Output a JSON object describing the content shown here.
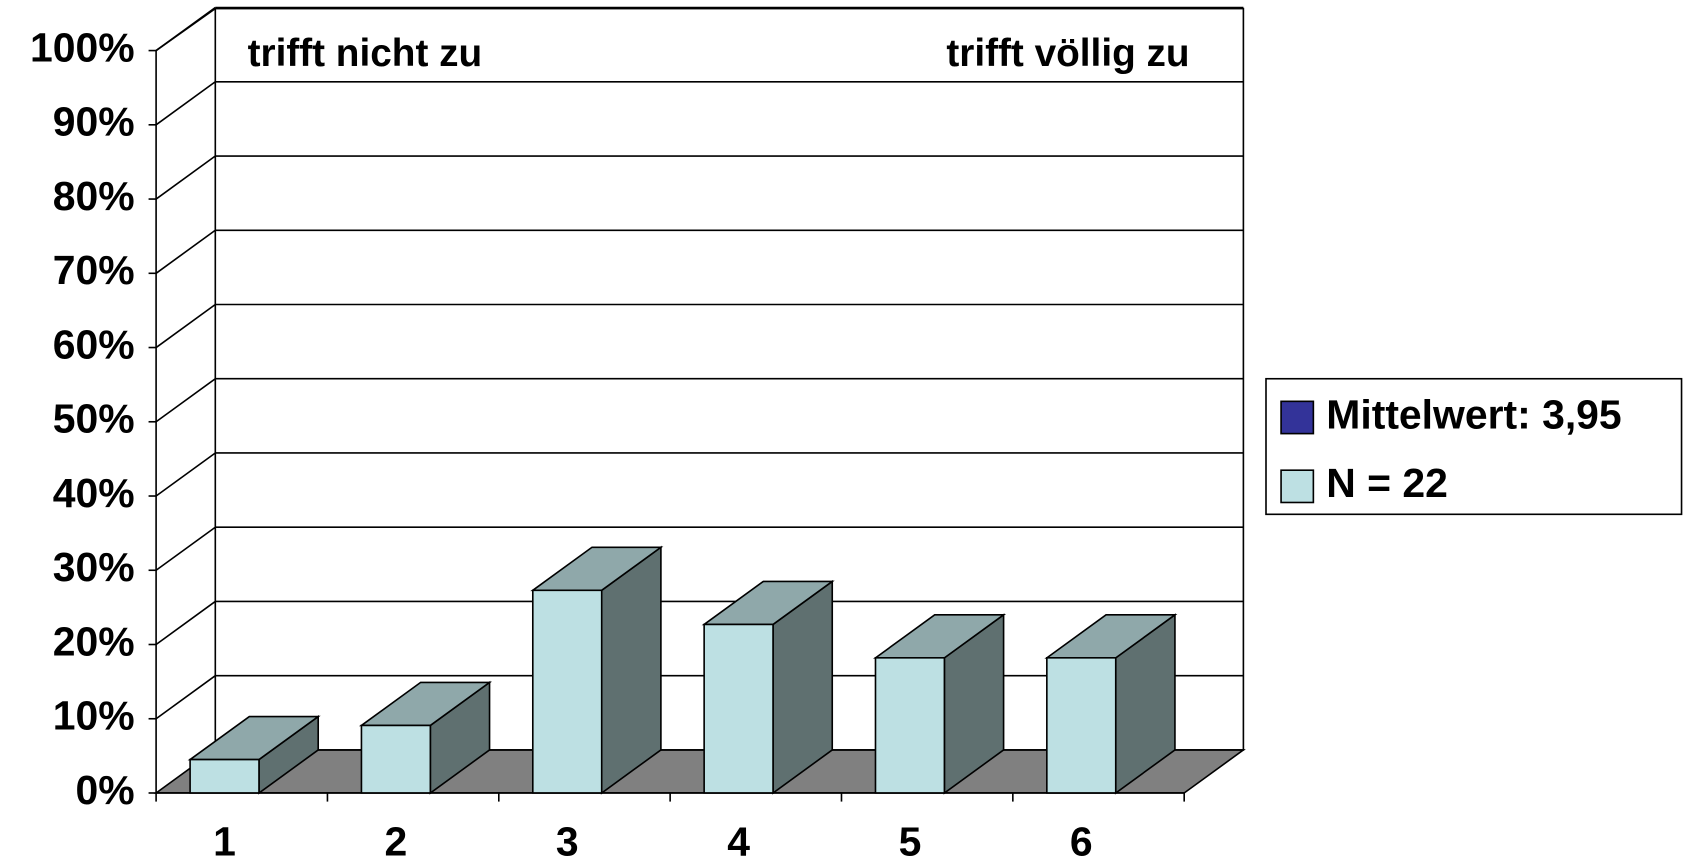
{
  "chart_data": {
    "type": "bar3d",
    "categories": [
      "1",
      "2",
      "3",
      "4",
      "5",
      "6"
    ],
    "series": [
      {
        "name": "Mittelwert: 3,95",
        "color": "#333399"
      },
      {
        "name": "N = 22",
        "color": "#bde0e3",
        "values": [
          4.5,
          9.1,
          27.3,
          22.7,
          18.2,
          18.2
        ]
      }
    ],
    "annotations": [
      "trifft nicht zu",
      "trifft völlig zu"
    ],
    "ylim": [
      0,
      100
    ],
    "yticks": [
      {
        "value": 0,
        "label": "0%"
      },
      {
        "value": 10,
        "label": "10%"
      },
      {
        "value": 20,
        "label": "20%"
      },
      {
        "value": 30,
        "label": "30%"
      },
      {
        "value": 40,
        "label": "40%"
      },
      {
        "value": 50,
        "label": "50%"
      },
      {
        "value": 60,
        "label": "60%"
      },
      {
        "value": 70,
        "label": "70%"
      },
      {
        "value": 80,
        "label": "80%"
      },
      {
        "value": 90,
        "label": "90%"
      },
      {
        "value": 100,
        "label": "100%"
      }
    ],
    "grid": true,
    "legend": "right"
  }
}
